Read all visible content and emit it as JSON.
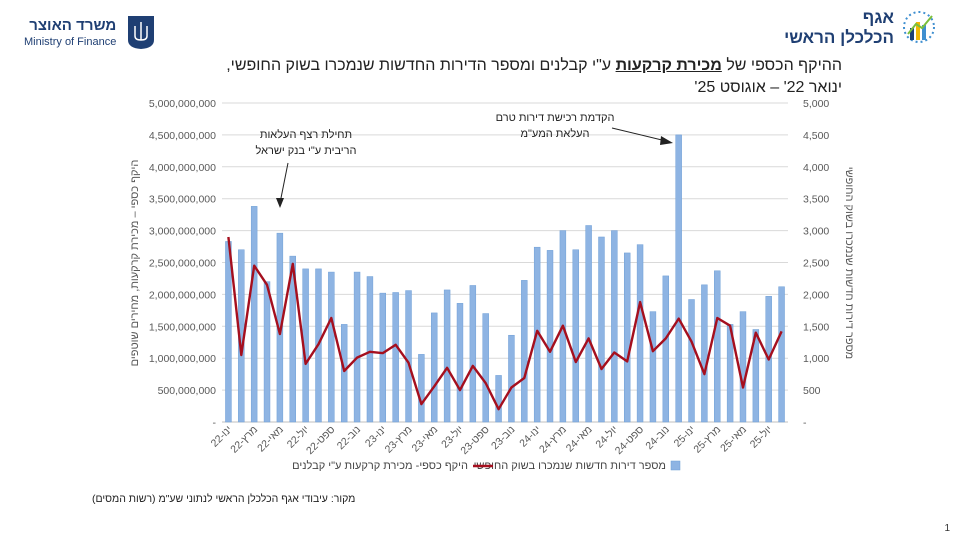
{
  "header": {
    "ministry_he": "משרד האוצר",
    "ministry_en": "Ministry of Finance",
    "dept_line1": "אגף",
    "dept_line2": "הכלכלן הראשי"
  },
  "title": {
    "part1": "ההיקף הכספי של ",
    "emphasis": "מכירת קרקעות",
    "part2": " ע\"י קבלנים ומספר הדירות החדשות שנמכרו בשוק החופשי,",
    "line2": "ינואר 22' – אוגוסט 25'"
  },
  "source": "מקור: עיבודי אגף הכלכלן הראשי לנתוני שע\"מ (רשות המסים)",
  "page_number": "1",
  "colors": {
    "bar": "#8eb4e3",
    "bar_edge": "#6f9fd6",
    "line": "#a50f1e",
    "grid": "#d9d9d9",
    "text": "#595959"
  },
  "chart_data": {
    "type": "bar+line",
    "left_axis": {
      "label": "היקף כספי – מכירת קרקעות, מחירים שוטפים",
      "min": 0,
      "max": 5000000000,
      "ticks": [
        "-",
        "500,000,000",
        "1,000,000,000",
        "1,500,000,000",
        "2,000,000,000",
        "2,500,000,000",
        "3,000,000,000",
        "3,500,000,000",
        "4,000,000,000",
        "4,500,000,000",
        "5,000,000,000"
      ]
    },
    "right_axis": {
      "label": "מספר דירות חדשות שנמכרו בשוק החופשי",
      "min": 0,
      "max": 5000,
      "ticks": [
        "-",
        "500",
        "1,000",
        "1,500",
        "2,000",
        "2,500",
        "3,000",
        "3,500",
        "4,000",
        "4,500",
        "5,000"
      ]
    },
    "x_tick_labels": [
      "ינו-22",
      "מרץ-22",
      "מאי-22",
      "יול-22",
      "ספט-22",
      "נוב-22",
      "ינו-23",
      "מרץ-23",
      "מאי-23",
      "יול-23",
      "ספט-23",
      "נוב-23",
      "ינו-24",
      "מרץ-24",
      "מאי-24",
      "יול-24",
      "ספט-24",
      "נוב-24",
      "ינו-25",
      "מרץ-25",
      "מאי-25",
      "יול-25"
    ],
    "series": [
      {
        "name": "מספר דירות חדשות שנמכרו בשוק החופשי",
        "type": "bar",
        "axis": "right",
        "values": [
          2830,
          2700,
          3380,
          2200,
          2960,
          2600,
          2400,
          2400,
          2350,
          1530,
          2350,
          2280,
          2020,
          2030,
          2060,
          1060,
          1710,
          2070,
          1860,
          2140,
          1700,
          730,
          1360,
          2220,
          2740,
          2690,
          3000,
          2700,
          3080,
          2900,
          3000,
          2650,
          2780,
          1730,
          2290,
          4500,
          1920,
          2150,
          2370,
          1530,
          1730,
          1450,
          1970,
          2120
        ]
      },
      {
        "name": "היקף כספי- מכירת קרקעות ע\"י קבלנים",
        "type": "line",
        "axis": "left",
        "values": [
          2900000000,
          1050000000,
          2450000000,
          2150000000,
          1380000000,
          2480000000,
          910000000,
          1220000000,
          1630000000,
          800000000,
          1010000000,
          1100000000,
          1080000000,
          1210000000,
          930000000,
          280000000,
          560000000,
          850000000,
          500000000,
          880000000,
          610000000,
          200000000,
          540000000,
          690000000,
          1430000000,
          1100000000,
          1510000000,
          940000000,
          1310000000,
          830000000,
          1090000000,
          950000000,
          1880000000,
          1110000000,
          1310000000,
          1620000000,
          1260000000,
          750000000,
          1630000000,
          1510000000,
          540000000,
          1400000000,
          980000000,
          1420000000
        ]
      }
    ],
    "annotations": [
      {
        "text_line1": "תחילת רצף העלאות",
        "text_line2": "הריבית ע\"י בנק ישראל",
        "month_index": 3
      },
      {
        "text_line1": "הקדמת רכישת דירות טרם",
        "text_line2": "העלאת המע\"מ",
        "month_index": 35
      }
    ],
    "legend": [
      "מספר דירות חדשות שנמכרו בשוק החופשי",
      "היקף כספי- מכירת קרקעות ע\"י קבלנים"
    ]
  }
}
